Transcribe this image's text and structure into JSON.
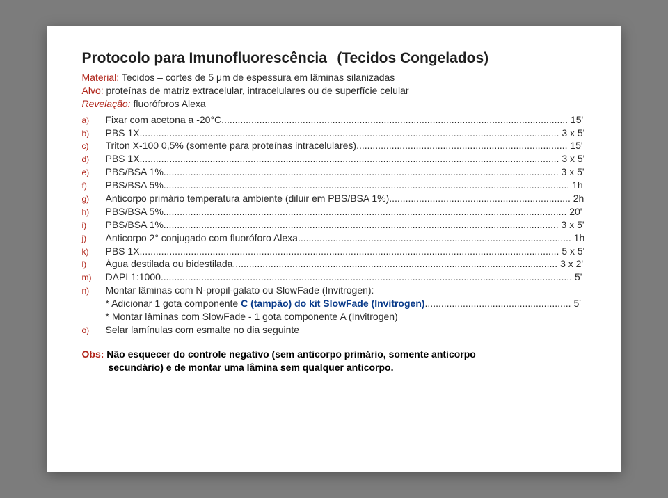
{
  "title": {
    "main": "Protocolo para Imunofluorescência",
    "sub": "(Tecidos Congelados)"
  },
  "meta": {
    "material_label": "Material:",
    "material_text": "Tecidos – cortes de 5 μm de espessura em lâminas silanizadas",
    "alvo_label": "Alvo:",
    "alvo_text": "proteínas de matriz extracelular, intracelulares ou de superfície celular",
    "revelacao_label": "Revelação:",
    "revelacao_text": "fluoróforos Alexa"
  },
  "steps": [
    {
      "marker": "a)",
      "text": "Fixar com acetona a -20°C",
      "tail": "15'"
    },
    {
      "marker": "b)",
      "text": "PBS 1X",
      "tail": "3 x 5'"
    },
    {
      "marker": "c)",
      "text": "Triton X-100 0,5% (somente para proteínas intracelulares)",
      "tail": "15'"
    },
    {
      "marker": "d)",
      "text": "PBS 1X",
      "tail": "3 x 5'"
    },
    {
      "marker": "e)",
      "text": "PBS/BSA 1%",
      "tail": "3 x 5'"
    },
    {
      "marker": "f)",
      "text": "PBS/BSA 5%",
      "tail": "1h"
    },
    {
      "marker": "g)",
      "text": "Anticorpo primário temperatura ambiente (diluir em PBS/BSA 1%)",
      "tail": "2h"
    },
    {
      "marker": "h)",
      "text": "PBS/BSA 5%",
      "tail": "20'"
    },
    {
      "marker": "i)",
      "text": "PBS/BSA 1%",
      "tail": "3 x 5'"
    },
    {
      "marker": "j)",
      "text": "Anticorpo 2° conjugado com fluoróforo Alexa",
      "tail": "1h"
    },
    {
      "marker": "k)",
      "text": "PBS 1X",
      "tail": "5 x 5'"
    },
    {
      "marker": "l)",
      "text": "Água destilada ou bidestilada",
      "tail": "3 x 2'"
    },
    {
      "marker": "m)",
      "text": "DAPI 1:1000",
      "tail": "5'"
    },
    {
      "marker": "n)",
      "text": "Montar lâminas com N-propil-galato ou SlowFade (Invitrogen):",
      "tail": ""
    },
    {
      "marker": "o)",
      "text": "Selar lamínulas com esmalte no dia seguinte",
      "tail": ""
    }
  ],
  "sub_n": {
    "line1_pre": "* Adicionar 1 gota componente ",
    "line1_blue": "C (tampão) do kit SlowFade (Invitrogen)",
    "line1_tail": "5´",
    "line2": "* Montar lâminas com SlowFade - 1 gota componente A (Invitrogen)"
  },
  "obs": {
    "label": "Obs:",
    "line1": "Não esquecer do controle negativo (sem anticorpo primário, somente anticorpo",
    "line2": "secundário) e de montar uma lâmina sem qualquer anticorpo."
  },
  "colors": {
    "page_bg": "#ffffff",
    "outer_bg": "#7c7c7c",
    "text": "#2a2a2a",
    "red": "#b02318",
    "blue": "#0a3b8a"
  }
}
